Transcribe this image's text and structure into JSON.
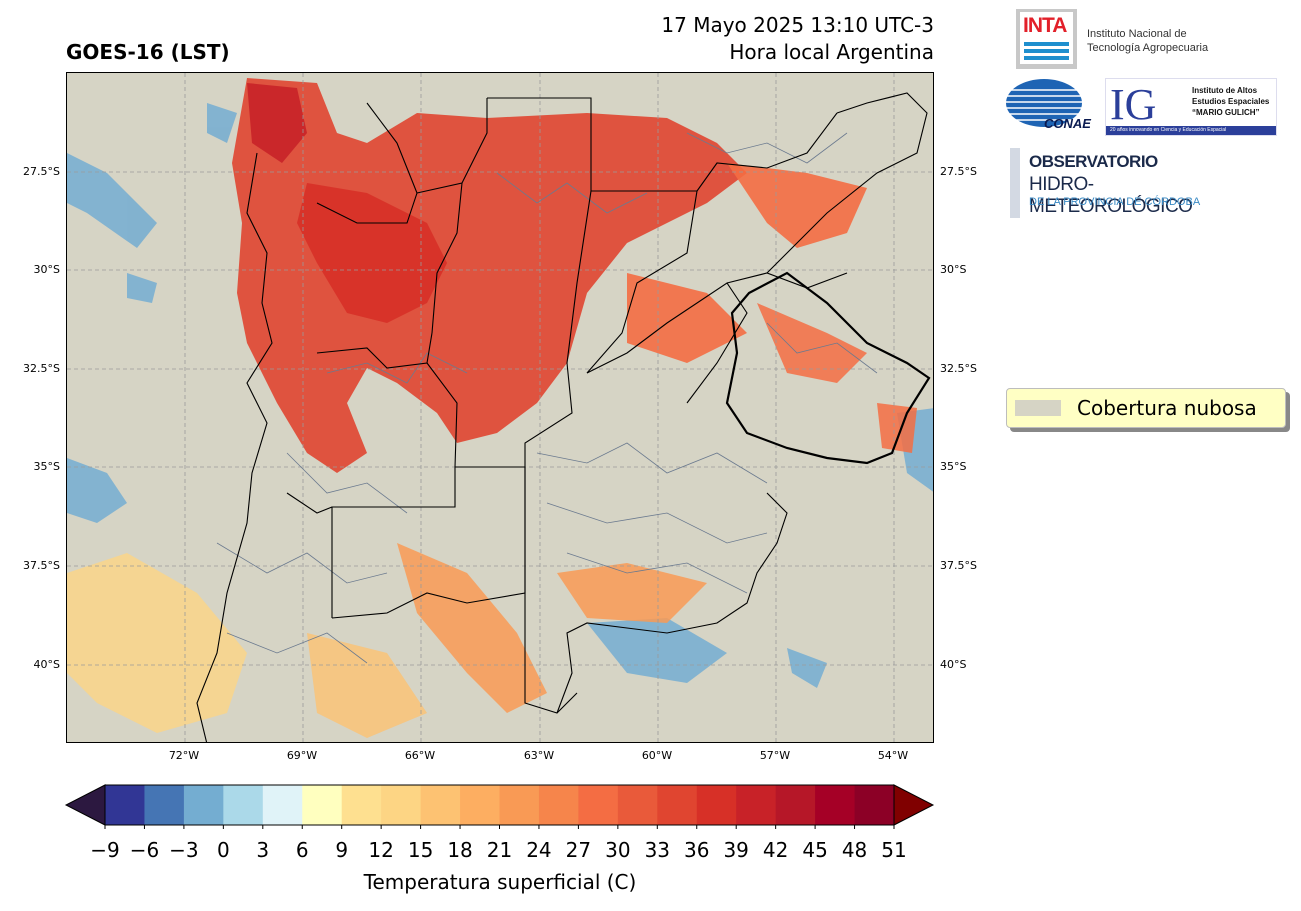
{
  "header": {
    "title_left": "GOES-16 (LST)",
    "title_right_line1": "17 Mayo 2025 13:10 UTC-3",
    "title_right_line2": "Hora local Argentina"
  },
  "map": {
    "lat_ticks": [
      "27.5°S",
      "30°S",
      "32.5°S",
      "35°S",
      "37.5°S",
      "40°S"
    ],
    "lon_ticks": [
      "72°W",
      "69°W",
      "66°W",
      "63°W",
      "60°W",
      "57°W",
      "54°W"
    ],
    "background_color": "#d6d4c5",
    "grid": true
  },
  "legend": {
    "label": "Cobertura nubosa",
    "swatch_color": "#d6d4c5"
  },
  "colorbar": {
    "label": "Temperatura superficial (C)",
    "ticks": [
      "−9",
      "−6",
      "−3",
      "0",
      "3",
      "6",
      "9",
      "12",
      "15",
      "18",
      "21",
      "24",
      "27",
      "30",
      "33",
      "36",
      "39",
      "42",
      "45",
      "48",
      "51"
    ],
    "colors": [
      "#313695",
      "#4575b4",
      "#74add1",
      "#abd9e9",
      "#e0f3f8",
      "#ffffbf",
      "#fee090",
      "#fdd584",
      "#fdc272",
      "#fdae61",
      "#f99a55",
      "#f6854b",
      "#f46d43",
      "#e95a3a",
      "#e04530",
      "#d73027",
      "#c82228",
      "#b61728",
      "#a50026",
      "#8c0026"
    ],
    "under_color": "#2c1840",
    "over_color": "#800000"
  },
  "logos": {
    "inta_word": "INTA",
    "inta_line1": "Instituto Nacional de",
    "inta_line2": "Tecnología Agropecuaria",
    "conae_word": "CONAE",
    "ig_word": "IG",
    "ig_line1": "Instituto de Altos",
    "ig_line2": "Estudios Espaciales",
    "ig_line3": "“MARIO GULICH”",
    "ig_bar": "20 años innovando en Ciencia y Educación Espacial",
    "obs_line1": "OBSERVATORIO",
    "obs_line2": "HIDRO-METEOROLÓGICO",
    "obs_line3": "DE LA PROVINCIA DE CÓRDOBA"
  }
}
